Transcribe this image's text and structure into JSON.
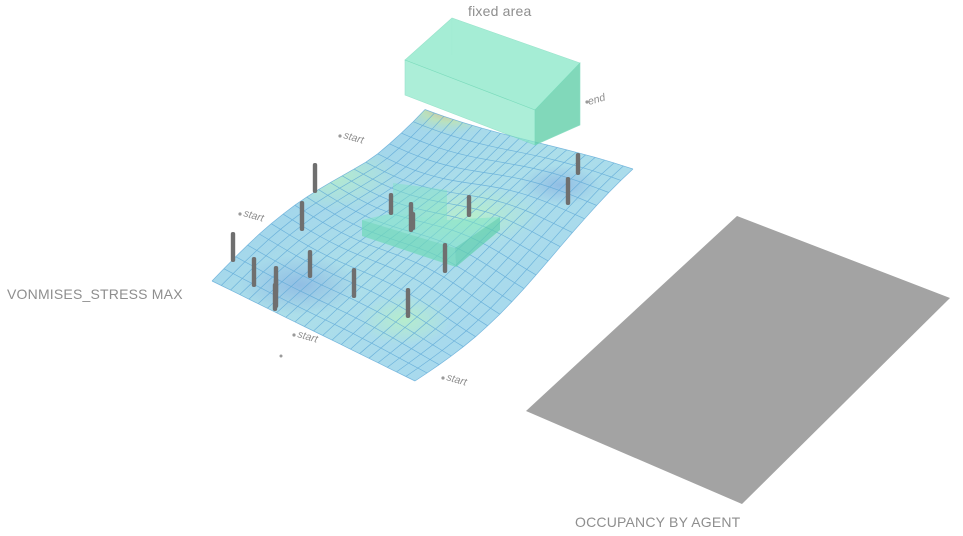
{
  "labels": {
    "fixed_area": "fixed area",
    "end": "end",
    "start_1": "start",
    "start_2": "start",
    "start_3": "start",
    "start_4": "start",
    "stress_title": "VONMISES_STRESS MAX",
    "occupancy_title": "OCCUPANCY BY AGENT"
  },
  "colors": {
    "mesh_base": "#a8d8ef",
    "mesh_line": "#5aa8d8",
    "stress_hot": "#e8a080",
    "stress_mid": "#a8e8c8",
    "box_fill": "#7fe3c4",
    "column": "#6f6f6f",
    "occupancy_plane": "#a3a3a3",
    "label": "#8e8e8e"
  },
  "column_count": 17
}
